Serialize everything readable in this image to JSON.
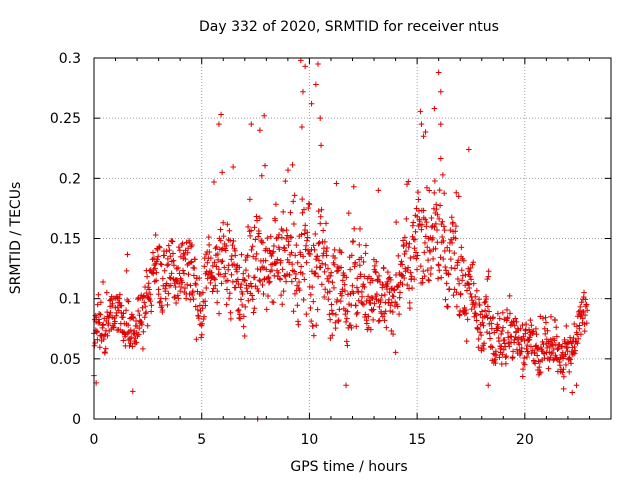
{
  "chart_data": {
    "type": "scatter",
    "title": "Day 332 of 2020, SRMTID for receiver ntus",
    "xlabel": "GPS time / hours",
    "ylabel": "SRMTID / TECUs",
    "xlim": [
      0,
      24
    ],
    "ylim": [
      0,
      0.3
    ],
    "xticks": [
      0,
      5,
      10,
      15,
      20
    ],
    "xtick_labels": [
      "0",
      "5",
      "10",
      "15",
      "20"
    ],
    "yticks": [
      0,
      0.05,
      0.1,
      0.15,
      0.2,
      0.25,
      0.3
    ],
    "ytick_labels": [
      "0",
      "0.05",
      "0.1",
      "0.15",
      "0.2",
      "0.25",
      "0.3"
    ],
    "grid": true,
    "marker": "+",
    "series": [
      {
        "name": "SRMTID",
        "color": "#e00000",
        "generator": {
          "seed": 332,
          "step_hours": 0.016,
          "x_start": 0.0,
          "x_end": 22.9
        },
        "profile": [
          {
            "x": 0.0,
            "center": 0.07,
            "spread": 0.02
          },
          {
            "x": 1.0,
            "center": 0.082,
            "spread": 0.02
          },
          {
            "x": 2.0,
            "center": 0.08,
            "spread": 0.022
          },
          {
            "x": 3.0,
            "center": 0.108,
            "spread": 0.028
          },
          {
            "x": 4.0,
            "center": 0.118,
            "spread": 0.03
          },
          {
            "x": 5.0,
            "center": 0.112,
            "spread": 0.03
          },
          {
            "x": 6.0,
            "center": 0.128,
            "spread": 0.036
          },
          {
            "x": 7.0,
            "center": 0.118,
            "spread": 0.034
          },
          {
            "x": 8.0,
            "center": 0.128,
            "spread": 0.04
          },
          {
            "x": 9.0,
            "center": 0.132,
            "spread": 0.04
          },
          {
            "x": 10.0,
            "center": 0.15,
            "spread": 0.055
          },
          {
            "x": 11.0,
            "center": 0.118,
            "spread": 0.04
          },
          {
            "x": 12.0,
            "center": 0.112,
            "spread": 0.036
          },
          {
            "x": 13.0,
            "center": 0.1,
            "spread": 0.03
          },
          {
            "x": 14.0,
            "center": 0.095,
            "spread": 0.03
          },
          {
            "x": 15.0,
            "center": 0.145,
            "spread": 0.036
          },
          {
            "x": 16.0,
            "center": 0.152,
            "spread": 0.04
          },
          {
            "x": 17.0,
            "center": 0.118,
            "spread": 0.032
          },
          {
            "x": 18.0,
            "center": 0.078,
            "spread": 0.022
          },
          {
            "x": 19.0,
            "center": 0.07,
            "spread": 0.02
          },
          {
            "x": 20.0,
            "center": 0.062,
            "spread": 0.018
          },
          {
            "x": 21.0,
            "center": 0.056,
            "spread": 0.018
          },
          {
            "x": 22.0,
            "center": 0.055,
            "spread": 0.018
          },
          {
            "x": 22.9,
            "center": 0.088,
            "spread": 0.02
          }
        ],
        "notable_points": [
          {
            "x": 9.6,
            "y": 0.298
          },
          {
            "x": 9.8,
            "y": 0.293
          },
          {
            "x": 10.4,
            "y": 0.295
          },
          {
            "x": 10.3,
            "y": 0.278
          },
          {
            "x": 9.7,
            "y": 0.272
          },
          {
            "x": 10.1,
            "y": 0.262
          },
          {
            "x": 5.9,
            "y": 0.253
          },
          {
            "x": 5.8,
            "y": 0.245
          },
          {
            "x": 7.9,
            "y": 0.252
          },
          {
            "x": 7.7,
            "y": 0.24
          },
          {
            "x": 7.3,
            "y": 0.245
          },
          {
            "x": 10.5,
            "y": 0.25
          },
          {
            "x": 16.0,
            "y": 0.288
          },
          {
            "x": 16.1,
            "y": 0.272
          },
          {
            "x": 15.8,
            "y": 0.258
          },
          {
            "x": 15.2,
            "y": 0.245
          },
          {
            "x": 16.1,
            "y": 0.245
          },
          {
            "x": 15.3,
            "y": 0.235
          },
          {
            "x": 17.4,
            "y": 0.224
          },
          {
            "x": 13.2,
            "y": 0.19
          },
          {
            "x": 1.8,
            "y": 0.023
          },
          {
            "x": 11.7,
            "y": 0.028
          },
          {
            "x": 18.3,
            "y": 0.028
          },
          {
            "x": 7.6,
            "y": 0.0
          },
          {
            "x": 0.1,
            "y": 0.03
          },
          {
            "x": 0.0,
            "y": 0.036
          },
          {
            "x": 22.2,
            "y": 0.022
          },
          {
            "x": 21.8,
            "y": 0.025
          },
          {
            "x": 22.4,
            "y": 0.028
          }
        ]
      }
    ]
  }
}
